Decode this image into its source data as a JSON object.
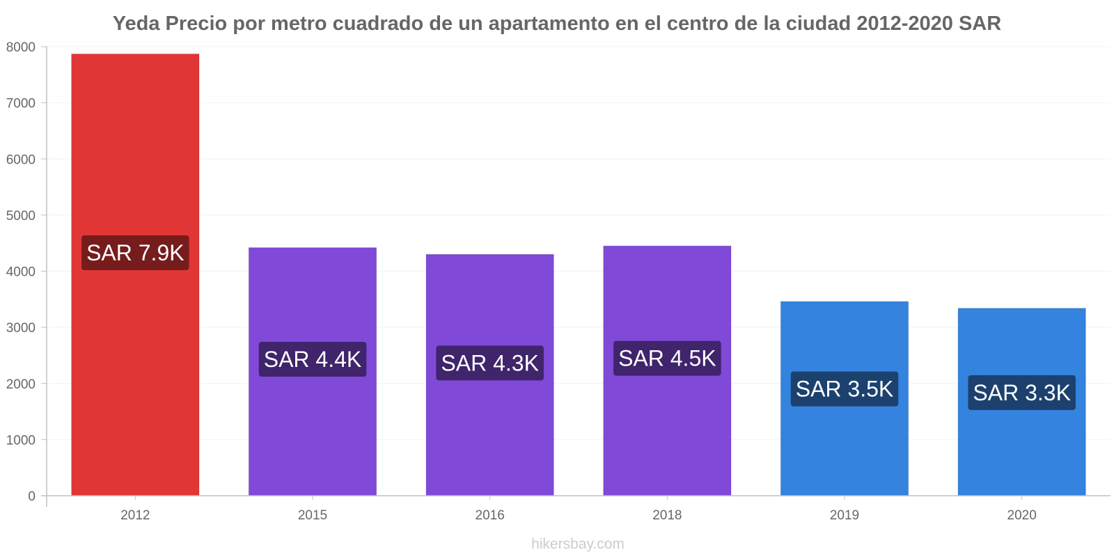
{
  "chart_data": {
    "type": "bar",
    "title": "Yeda Precio por metro cuadrado de un apartamento en el centro de la ciudad 2012-2020 SAR",
    "categories": [
      "2012",
      "2015",
      "2016",
      "2018",
      "2019",
      "2020"
    ],
    "values": [
      7870,
      4420,
      4300,
      4450,
      3460,
      3340
    ],
    "data_labels": [
      "SAR 7.9K",
      "SAR 4.4K",
      "SAR 4.3K",
      "SAR 4.5K",
      "SAR 3.5K",
      "SAR 3.3K"
    ],
    "bar_colors": [
      "#e23636",
      "#8049d8",
      "#8049d8",
      "#8049d8",
      "#3483de",
      "#3483de"
    ],
    "label_bg_colors": [
      "#761c1c",
      "#40246c",
      "#40246c",
      "#40246c",
      "#1c416f",
      "#1c416f"
    ],
    "y_ticks": [
      0,
      1000,
      2000,
      3000,
      4000,
      5000,
      6000,
      7000,
      8000
    ],
    "ylim": [
      0,
      8000
    ],
    "xlabel": "",
    "ylabel": "",
    "grid": true,
    "legend": "none"
  },
  "source": "hikersbay.com"
}
